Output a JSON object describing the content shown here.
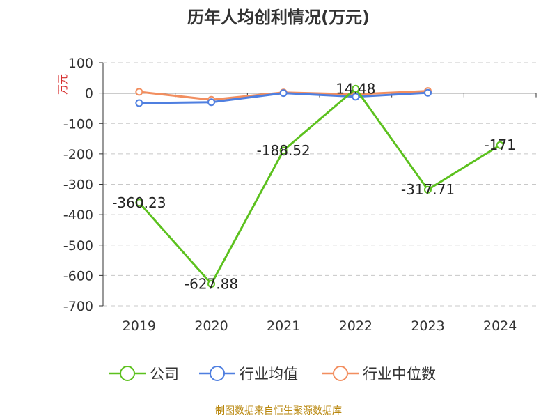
{
  "title": "历年人均创利情况(万元)",
  "source": "制图数据来自恒生聚源数据库",
  "colors": {
    "company": "#5cc11e",
    "industry_avg": "#4f7fe0",
    "industry_median": "#f28e5f",
    "axis": "#333333",
    "grid": "#c8c8c8",
    "ylabel": "#d62d2d"
  },
  "legend": [
    {
      "key": "company",
      "label": "公司"
    },
    {
      "key": "industry_avg",
      "label": "行业均值"
    },
    {
      "key": "industry_median",
      "label": "行业中位数"
    }
  ],
  "chart_data": {
    "type": "line",
    "title": "历年人均创利情况(万元)",
    "ylabel": "万元",
    "xlabel": "",
    "categories": [
      "2019",
      "2020",
      "2021",
      "2022",
      "2023",
      "2024"
    ],
    "ylim": [
      -700,
      100
    ],
    "yticks": [
      100,
      0,
      -100,
      -200,
      -300,
      -400,
      -500,
      -600,
      -700
    ],
    "grid": true,
    "legend_position": "bottom",
    "series": [
      {
        "key": "company",
        "name": "公司",
        "values": [
          -360.23,
          -627.88,
          -188.52,
          14.48,
          -317.71,
          -171
        ],
        "labels": [
          "-360.23",
          "-627.88",
          "-188.52",
          "14.48",
          "-317.71",
          "-171"
        ]
      },
      {
        "key": "industry_avg",
        "name": "行业均值",
        "values": [
          -33,
          -30,
          0,
          -12,
          1,
          null
        ]
      },
      {
        "key": "industry_median",
        "name": "行业中位数",
        "values": [
          4,
          -22,
          2,
          -4,
          7,
          null
        ]
      }
    ]
  }
}
